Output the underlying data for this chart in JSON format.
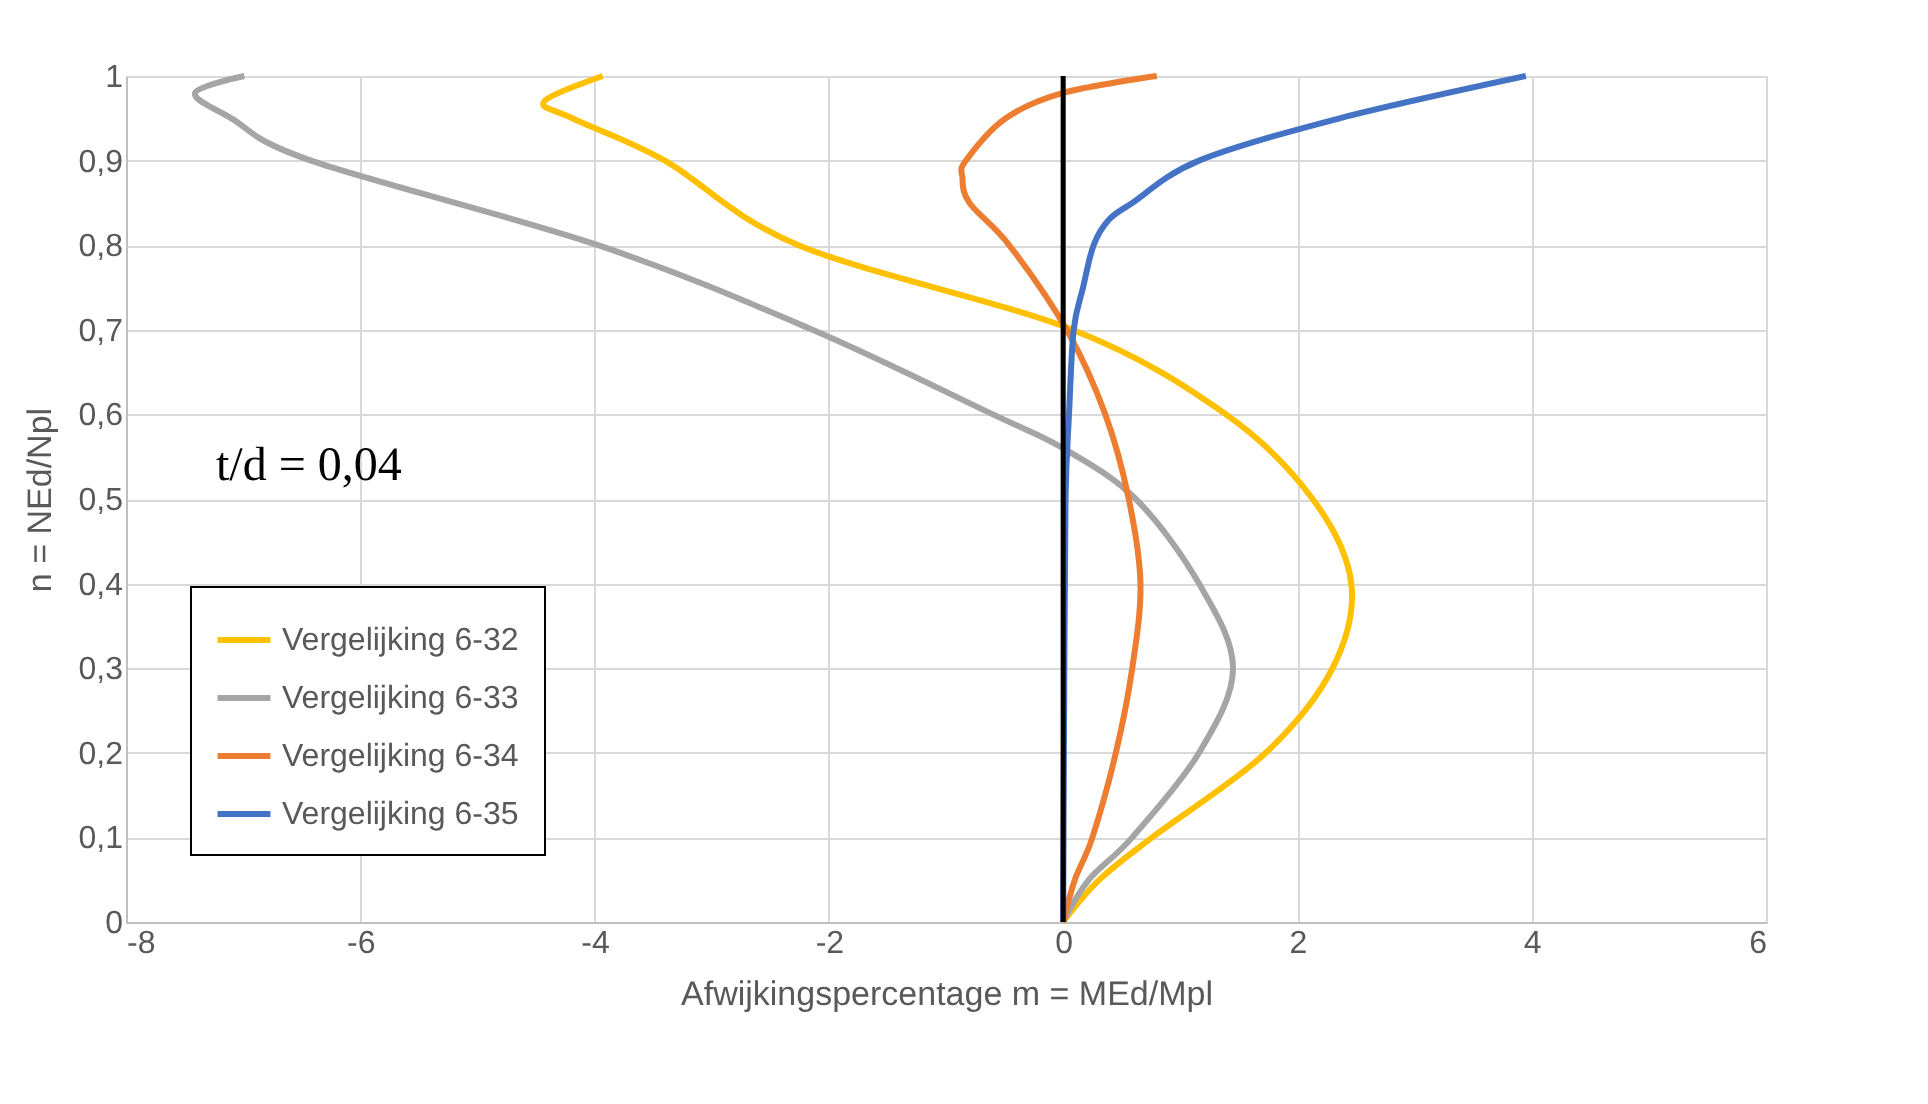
{
  "chart_data": {
    "type": "line",
    "xlabel": "Afwijkingspercentage m = MEd/Mpl",
    "ylabel": "n = NEd/Npl",
    "annotations": [
      "t/d = 0,04"
    ],
    "xlim": [
      -8,
      6
    ],
    "xticks": [
      -8,
      -6,
      -4,
      -2,
      0,
      2,
      4,
      6
    ],
    "ylim": [
      0,
      1
    ],
    "yticks": [
      0,
      {
        "value": 0.1,
        "label": "0,1"
      },
      {
        "value": 0.2,
        "label": "0,2"
      },
      {
        "value": 0.3,
        "label": "0,3"
      },
      {
        "value": 0.4,
        "label": "0,4"
      },
      {
        "value": 0.5,
        "label": "0,5"
      },
      {
        "value": 0.6,
        "label": "0,6"
      },
      {
        "value": 0.7,
        "label": "0,7"
      },
      {
        "value": 0.8,
        "label": "0,8"
      },
      {
        "value": 0.9,
        "label": "0,9"
      },
      1
    ],
    "grid": true,
    "legend": "bottom left",
    "marker": "none",
    "line_style": "solid",
    "ref_lines": [
      {
        "axis": "x",
        "value": 0,
        "color": "#000000"
      }
    ],
    "series": [
      {
        "name": "Vergelijking 6-32",
        "color": "#ffc000",
        "x": [
          0,
          0.31,
          0.76,
          1.73,
          2.3,
          2.46,
          2.13,
          1.39,
          0.08,
          -2.26,
          -3.4,
          -4.19,
          -4.43,
          -3.93
        ],
        "values": [
          0,
          0.05,
          0.1,
          0.2,
          0.3,
          0.4,
          0.5,
          0.6,
          0.7,
          0.8,
          0.9,
          0.95,
          0.97,
          1
        ]
      },
      {
        "name": "Vergelijking 6-33",
        "color": "#a5a5a5",
        "x": [
          0,
          0.22,
          0.59,
          1.16,
          1.45,
          1.16,
          0.62,
          0,
          -0.6,
          -2.14,
          -3.97,
          -6.42,
          -7.1,
          -7.41,
          -6.99
        ],
        "values": [
          0,
          0.05,
          0.1,
          0.2,
          0.3,
          0.4,
          0.5,
          0.56,
          0.6,
          0.7,
          0.8,
          0.9,
          0.95,
          0.98,
          1
        ]
      },
      {
        "name": "Vergelijking 6-34",
        "color": "#ed7d31",
        "x": [
          0,
          0.1,
          0.25,
          0.45,
          0.59,
          0.66,
          0.56,
          0.36,
          0.03,
          -0.46,
          -0.8,
          -0.86,
          -0.83,
          -0.49,
          0,
          0.8
        ],
        "values": [
          0,
          0.05,
          0.1,
          0.2,
          0.3,
          0.4,
          0.5,
          0.6,
          0.7,
          0.8,
          0.85,
          0.88,
          0.9,
          0.95,
          0.98,
          1
        ]
      },
      {
        "name": "Vergelijking 6-35",
        "color": "#4472c4",
        "x": [
          0,
          0.01,
          0.02,
          0.05,
          0.09,
          0.17,
          0.26,
          0.39,
          0.59,
          1.16,
          2.36,
          3.95
        ],
        "values": [
          0,
          0.3,
          0.5,
          0.6,
          0.7,
          0.75,
          0.8,
          0.83,
          0.85,
          0.9,
          0.95,
          1
        ]
      }
    ]
  }
}
